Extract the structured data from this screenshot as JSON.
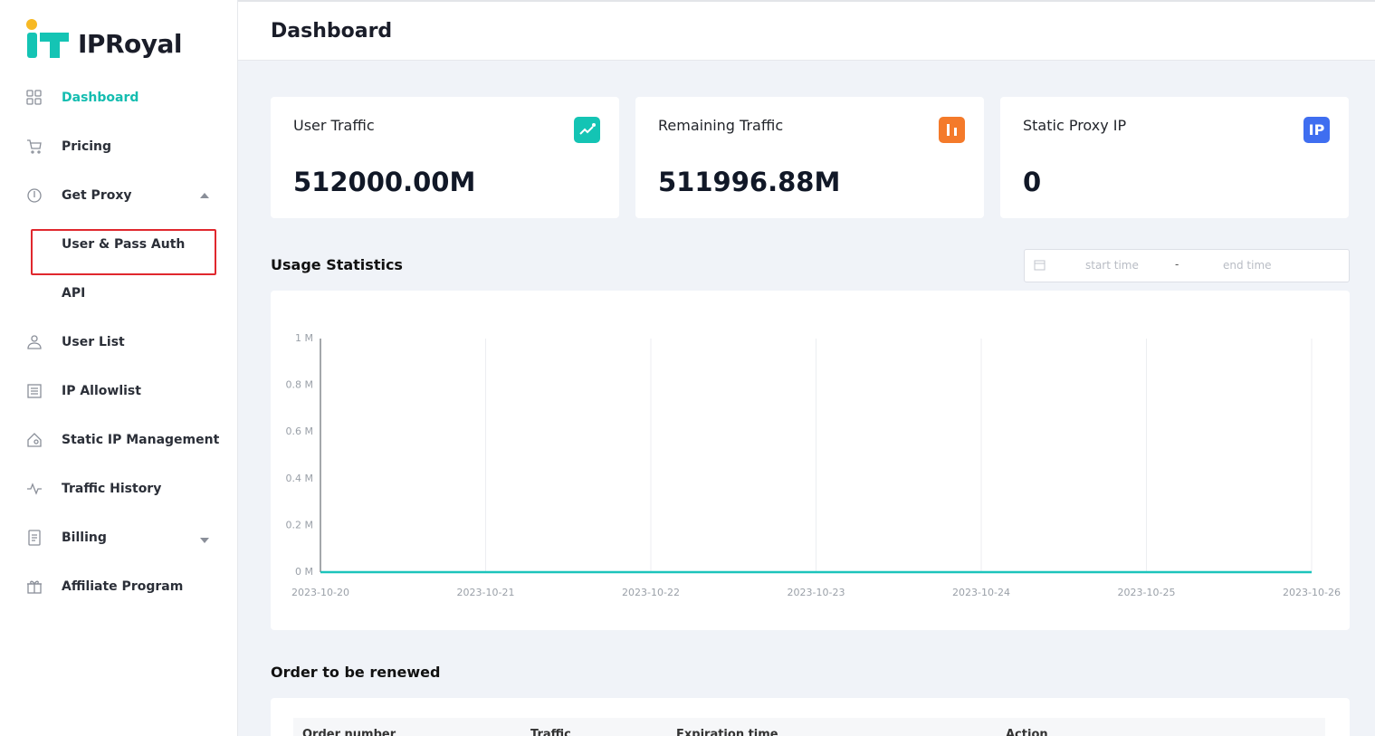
{
  "logo": {
    "text": "IPRoyal"
  },
  "header": {
    "title": "Dashboard"
  },
  "nav": [
    {
      "label": "Dashboard",
      "active": true
    },
    {
      "label": "Pricing"
    },
    {
      "label": "Get Proxy",
      "expanded": true,
      "children": [
        {
          "label": "User & Pass Auth",
          "highlighted": true
        },
        {
          "label": "API"
        }
      ]
    },
    {
      "label": "User List"
    },
    {
      "label": "IP Allowlist"
    },
    {
      "label": "Static IP Management"
    },
    {
      "label": "Traffic History"
    },
    {
      "label": "Billing",
      "expanded": false,
      "children": []
    },
    {
      "label": "Affiliate Program"
    }
  ],
  "cards": [
    {
      "label": "User Traffic",
      "value": "512000.00M",
      "color": "#14c4b4"
    },
    {
      "label": "Remaining Traffic",
      "value": "511996.88M",
      "color": "#f47a2a"
    },
    {
      "label": "Static Proxy IP",
      "value": "0",
      "color": "#3f6ef0",
      "icon": "IP"
    }
  ],
  "usage": {
    "title": "Usage Statistics",
    "date_picker": {
      "start": "start time",
      "separator": "-",
      "end": "end time"
    },
    "chart_data": {
      "type": "line",
      "categories": [
        "2023-10-20",
        "2023-10-21",
        "2023-10-22",
        "2023-10-23",
        "2023-10-24",
        "2023-10-25",
        "2023-10-26"
      ],
      "series": [
        {
          "color": "#1cc4bc",
          "values": [
            0,
            0,
            0,
            0,
            0,
            0,
            0
          ]
        }
      ],
      "ylim": [
        0,
        1
      ],
      "yticks": [
        {
          "value": 0,
          "label": "0 M"
        },
        {
          "value": 0.2,
          "label": "0.2 M"
        },
        {
          "value": 0.4,
          "label": "0.4 M"
        },
        {
          "value": 0.6,
          "label": "0.6 M"
        },
        {
          "value": 0.8,
          "label": "0.8 M"
        },
        {
          "value": 1,
          "label": "1 M"
        }
      ],
      "grid": true
    }
  },
  "orders": {
    "title": "Order to be renewed",
    "columns": [
      "Order number",
      "Traffic",
      "Expiration time",
      "Action"
    ]
  }
}
